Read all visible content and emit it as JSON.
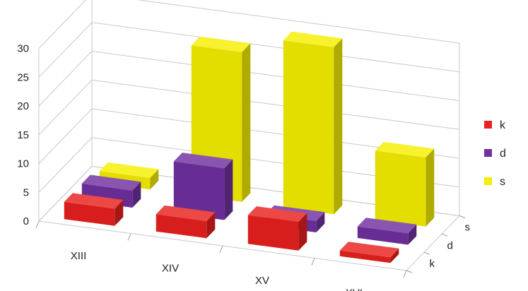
{
  "chart_data": {
    "type": "bar",
    "subtype": "3d-column",
    "categories": [
      "XIII",
      "XIV",
      "XV",
      "XVI"
    ],
    "depth_categories": [
      "k",
      "d",
      "s"
    ],
    "y_ticks": [
      "0",
      "5",
      "10",
      "15",
      "20",
      "25",
      "30"
    ],
    "ylim": [
      0,
      30
    ],
    "grid": true,
    "legend_position": "right",
    "series": [
      {
        "name": "k",
        "color": "#e8201e",
        "values": [
          3,
          3,
          5,
          1
        ]
      },
      {
        "name": "d",
        "color": "#7030a0",
        "values": [
          3,
          9,
          2,
          2
        ]
      },
      {
        "name": "s",
        "color": "#f5ee00",
        "values": [
          2,
          26,
          29,
          12
        ]
      }
    ]
  }
}
